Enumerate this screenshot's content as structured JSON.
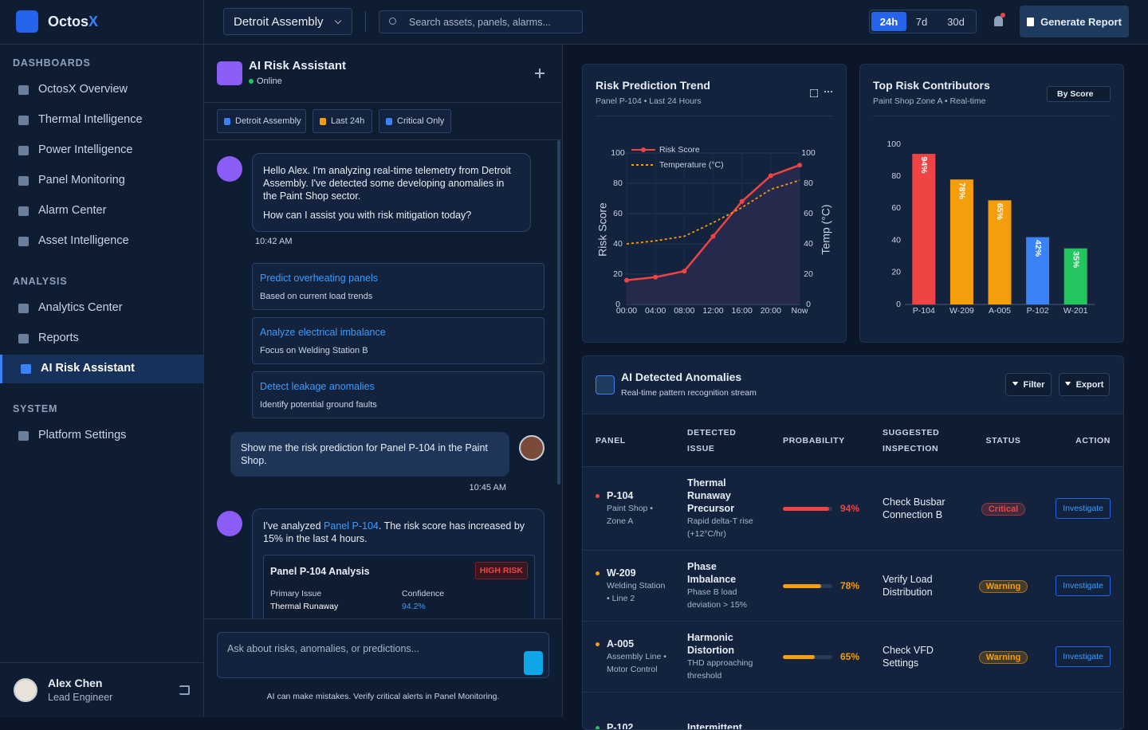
{
  "sidebar": {
    "brand": "Octos",
    "brand_accent": "X",
    "sections": [
      {
        "title": "DASHBOARDS",
        "items": [
          "OctosX Overview",
          "Thermal Intelligence",
          "Power Intelligence",
          "Panel Monitoring",
          "Alarm Center",
          "Asset Intelligence"
        ]
      },
      {
        "title": "ANALYSIS",
        "items": [
          "Analytics Center",
          "Reports",
          "AI Risk Assistant"
        ]
      },
      {
        "title": "SYSTEM",
        "items": [
          "Platform Settings"
        ]
      }
    ],
    "active": [
      1,
      2
    ],
    "user": {
      "name": "Alex Chen",
      "role": "Lead Engineer"
    }
  },
  "topbar": {
    "site": "Detroit Assembly",
    "search_placeholder": "Search assets, panels, alarms...",
    "ranges": [
      "24h",
      "7d",
      "30d"
    ],
    "active_range": 0,
    "report_button": "Generate Report"
  },
  "chat": {
    "title": "AI Risk Assistant",
    "status": "Online",
    "filters": [
      "Detroit Assembly",
      "Last 24h",
      "Critical Only"
    ],
    "greeting": {
      "paragraphs": [
        "Hello Alex. I'm analyzing real-time telemetry from Detroit Assembly. I've detected some developing anomalies in the Paint Shop sector.",
        "How can I assist you with risk mitigation today?"
      ],
      "time": "10:42 AM"
    },
    "suggestions": [
      {
        "title": "Predict overheating panels",
        "subtitle": "Based on current load trends"
      },
      {
        "title": "Analyze electrical imbalance",
        "subtitle": "Focus on Welding Station B"
      },
      {
        "title": "Detect leakage anomalies",
        "subtitle": "Identify potential ground faults"
      }
    ],
    "user_message": {
      "text": "Show me the risk prediction for Panel P-104 in the Paint Shop.",
      "time": "10:45 AM"
    },
    "reply": {
      "before": "I've analyzed ",
      "link": "Panel P-104",
      "after": ". The risk score has increased by 15% in the last 4 hours.",
      "card": {
        "title": "Panel P-104 Analysis",
        "badge": "HIGH RISK",
        "fields": [
          {
            "label": "Primary Issue",
            "value": "Thermal Runaway"
          },
          {
            "label": "Confidence",
            "value": "94.2%"
          }
        ]
      }
    },
    "input_placeholder": "Ask about risks, anomalies, or predictions...",
    "disclaimer": "AI can make mistakes. Verify critical alerts in Panel Monitoring."
  },
  "risk_trend": {
    "type": "line",
    "title": "Risk Prediction Trend",
    "subtitle": "Panel P-104 • Last 24 Hours",
    "categories": [
      "00:00",
      "04:00",
      "08:00",
      "12:00",
      "16:00",
      "20:00",
      "Now"
    ],
    "series": [
      {
        "name": "Risk Score",
        "color": "#ef4444",
        "values": [
          16,
          18,
          22,
          45,
          68,
          85,
          92
        ]
      },
      {
        "name": "Temperature (°C)",
        "color": "#f59e0b",
        "values": [
          40,
          42,
          45,
          54,
          64,
          76,
          82
        ],
        "axis": "y2",
        "dashed": true
      }
    ],
    "ylabel": "Risk Score",
    "y2label": "Temp (°C)",
    "ylim": [
      0,
      100
    ],
    "yticks": [
      0,
      20,
      40,
      60,
      80,
      100
    ],
    "y2lim": [
      0,
      100
    ],
    "y2ticks": [
      0,
      20,
      40,
      60,
      80,
      100
    ],
    "grid": true
  },
  "top_risk": {
    "type": "bar",
    "title": "Top Risk Contributors",
    "subtitle": "Paint Shop Zone A • Real-time",
    "sort_label": "By Score",
    "categories": [
      "P-104",
      "W-209",
      "A-005",
      "P-102",
      "W-201"
    ],
    "values": [
      94,
      78,
      65,
      42,
      35
    ],
    "value_labels": [
      "94%",
      "78%",
      "65%",
      "42%",
      "35%"
    ],
    "colors": [
      "#ef4444",
      "#f59e0b",
      "#f59e0b",
      "#3b82f6",
      "#22c55e"
    ],
    "ylim": [
      0,
      100
    ],
    "yticks": [
      0,
      20,
      40,
      60,
      80,
      100
    ]
  },
  "anomalies": {
    "title": "AI Detected Anomalies",
    "subtitle": "Real-time pattern recognition stream",
    "buttons": [
      "Filter",
      "Export"
    ],
    "headers": [
      "PANEL",
      "DETECTED ISSUE",
      "PROBABILITY",
      "SUGGESTED INSPECTION",
      "STATUS",
      "ACTION"
    ],
    "rows": [
      {
        "panel": "P-104",
        "location": "Paint Shop • Zone A",
        "issue": "Thermal Runaway Precursor",
        "detail": "Rapid delta-T rise (+12°C/hr)",
        "probability": 94,
        "probability_label": "94%",
        "inspection": "Check Busbar Connection B",
        "status": "Critical",
        "action": "Investigate",
        "color": "#ef4444"
      },
      {
        "panel": "W-209",
        "location": "Welding Station • Line 2",
        "issue": "Phase Imbalance",
        "detail": "Phase B load deviation > 15%",
        "probability": 78,
        "probability_label": "78%",
        "inspection": "Verify Load Distribution",
        "status": "Warning",
        "action": "Investigate",
        "color": "#f59e0b"
      },
      {
        "panel": "A-005",
        "location": "Assembly Line • Motor Control",
        "issue": "Harmonic Distortion",
        "detail": "THD approaching threshold",
        "probability": 65,
        "probability_label": "65%",
        "inspection": "Check VFD Settings",
        "status": "Warning",
        "action": "Investigate",
        "color": "#f59e0b"
      },
      {
        "panel": "P-102",
        "issue": "Intermittent",
        "color": "#22c55e"
      }
    ]
  }
}
